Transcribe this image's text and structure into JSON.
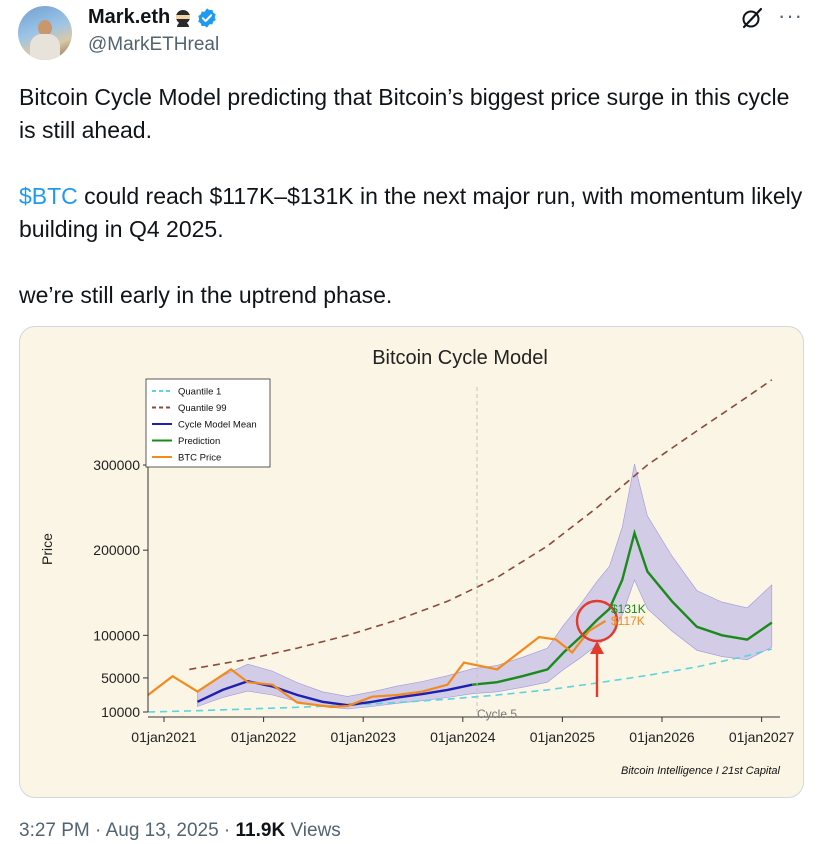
{
  "author": {
    "display_name": "Mark.eth",
    "handle": "@MarkETHreal"
  },
  "icons": {
    "avatar": "avatar-photo",
    "badge_emoji": "ninja-icon",
    "verified": "verified-badge-icon",
    "grok": "grok-icon",
    "more": "more-options-icon"
  },
  "colors": {
    "verified_blue": "#1d9bf0",
    "cashtag_blue": "#1d9bf0",
    "card_background": "#faf5e4"
  },
  "tweet": {
    "line1": "Bitcoin Cycle Model predicting that Bitcoin’s biggest price surge in this cycle is still ahead.",
    "cashtag": "$BTC",
    "line2_rest": " could reach $117K–$131K in the next major run, with momentum likely building in Q4 2025.",
    "line3": "we’re still early in the uptrend phase."
  },
  "meta": {
    "time": "3:27 PM · Aug 13, 2025 · ",
    "views_count": "11.9K",
    "views_label": " Views"
  },
  "chart_data": {
    "type": "line",
    "title": "Bitcoin Cycle Model",
    "ylabel": "Price",
    "xlabel": "",
    "x_ticks": [
      "01jan2021",
      "01jan2022",
      "01jan2023",
      "01jan2024",
      "01jan2025",
      "01jan2026",
      "01jan2027"
    ],
    "y_ticks": [
      10000,
      50000,
      100000,
      200000,
      300000
    ],
    "y_tick_labels": [
      "10000",
      "50000",
      "100000",
      "200000",
      "300000"
    ],
    "xlim": [
      "2021-01-01",
      "2027-05-01"
    ],
    "ylim": [
      0,
      400000
    ],
    "legend_position": "top-left",
    "legend": [
      "Quantile 1",
      "Quantile 99",
      "Cycle Model Mean",
      "Prediction",
      "BTC Price"
    ],
    "series_colors": {
      "quantile1": "#5bd4e0",
      "quantile99": "#8b4a3c",
      "mean": "#1f1fb0",
      "prediction": "#1a8a1a",
      "btc": "#f28a1e",
      "band": "#b8b0ea"
    },
    "annotations": {
      "high_label": "$131K",
      "low_label": "$117K",
      "cycle_label": "Cycle 5",
      "source": "Bitcoin Intelligence I 21st Capital"
    },
    "series": [
      {
        "name": "Quantile 1",
        "x": [
          "2021-01-01",
          "2021-07-01",
          "2022-01-01",
          "2022-07-01",
          "2023-01-01",
          "2023-07-01",
          "2024-01-01",
          "2024-07-01",
          "2025-01-01",
          "2025-07-01",
          "2026-01-01",
          "2026-07-01",
          "2027-01-01",
          "2027-04-01"
        ],
        "y": [
          10000,
          11500,
          13500,
          15500,
          18000,
          21000,
          25000,
          30000,
          36000,
          44000,
          53000,
          63000,
          76000,
          84000
        ]
      },
      {
        "name": "Quantile 99",
        "x": [
          "2021-06-01",
          "2022-01-01",
          "2022-07-01",
          "2023-01-01",
          "2023-07-01",
          "2024-01-01",
          "2024-07-01",
          "2025-01-01",
          "2025-07-01",
          "2026-01-01",
          "2026-07-01",
          "2027-01-01",
          "2027-04-01"
        ],
        "y": [
          60000,
          72000,
          85000,
          100000,
          118000,
          140000,
          168000,
          205000,
          250000,
          300000,
          340000,
          380000,
          400000
        ]
      },
      {
        "name": "Cycle Model Mean",
        "x": [
          "2021-07-01",
          "2021-10-01",
          "2022-01-01",
          "2022-04-01",
          "2022-07-01",
          "2022-10-01",
          "2023-01-01",
          "2023-04-01",
          "2023-07-01",
          "2023-10-01",
          "2024-01-01",
          "2024-04-01"
        ],
        "y": [
          22000,
          36000,
          46000,
          40000,
          30000,
          22000,
          18000,
          22000,
          27000,
          31000,
          36000,
          42000
        ]
      },
      {
        "name": "Prediction",
        "x": [
          "2024-04-01",
          "2024-07-01",
          "2024-10-01",
          "2025-01-01",
          "2025-03-01",
          "2025-05-01",
          "2025-07-01",
          "2025-08-15",
          "2025-10-01",
          "2025-11-15",
          "2026-01-01",
          "2026-04-01",
          "2026-07-01",
          "2026-10-01",
          "2027-01-01",
          "2027-04-01"
        ],
        "y": [
          42000,
          45000,
          52000,
          60000,
          80000,
          98000,
          118000,
          131000,
          165000,
          220000,
          175000,
          140000,
          110000,
          100000,
          95000,
          115000
        ]
      },
      {
        "name": "BTC Price",
        "x": [
          "2021-01-01",
          "2021-04-01",
          "2021-07-01",
          "2021-11-01",
          "2022-01-01",
          "2022-04-01",
          "2022-07-01",
          "2022-11-01",
          "2023-01-01",
          "2023-04-01",
          "2023-07-01",
          "2023-10-01",
          "2024-01-01",
          "2024-03-01",
          "2024-07-01",
          "2024-12-01",
          "2025-02-01",
          "2025-04-01",
          "2025-06-01",
          "2025-08-01"
        ],
        "y": [
          30000,
          52000,
          34000,
          60000,
          45000,
          42000,
          21000,
          16000,
          17000,
          28000,
          30000,
          34000,
          42000,
          68000,
          60000,
          98000,
          95000,
          80000,
          105000,
          117000
        ]
      }
    ]
  }
}
